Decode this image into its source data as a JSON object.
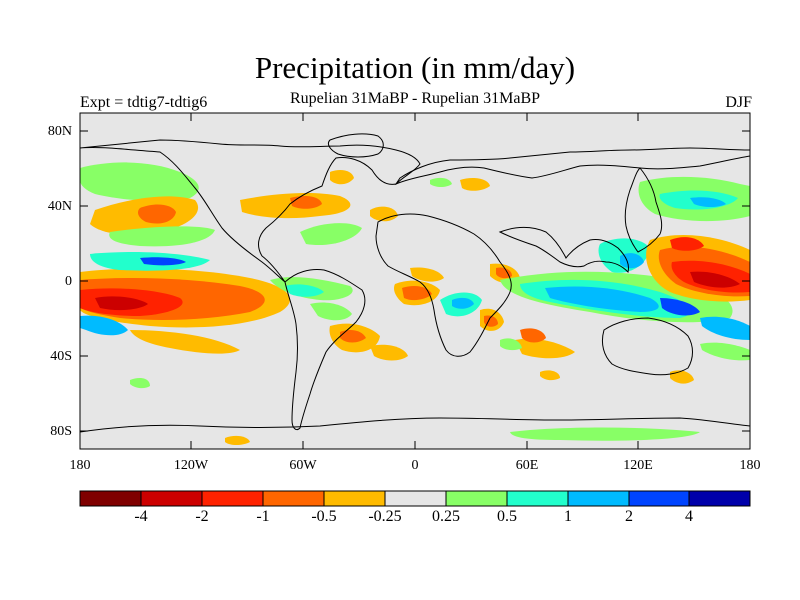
{
  "title": "Precipitation (in mm/day)",
  "subtitle": "Rupelian  31MaBP - Rupelian  31MaBP",
  "left_label": "Expt = tdtig7-tdtig6",
  "right_label": "DJF",
  "lat_ticks": [
    "80N",
    "40N",
    "0",
    "40S",
    "80S"
  ],
  "lon_ticks": [
    "180",
    "120W",
    "60W",
    "0",
    "60E",
    "120E",
    "180"
  ],
  "colorbar": {
    "colors": [
      "#7f0000",
      "#cc0000",
      "#ff2200",
      "#ff6600",
      "#ffbb00",
      "#e6e6e6",
      "#88ff66",
      "#22ffcc",
      "#00bbff",
      "#0044ff",
      "#0000aa",
      "#000080"
    ],
    "labels": [
      "-4",
      "-2",
      "-1",
      "-0.5",
      "-0.25",
      "0.25",
      "0.5",
      "1",
      "2",
      "4"
    ]
  },
  "colors": {
    "ocean_background": "#e6e6e6",
    "coastline": "#000000"
  }
}
